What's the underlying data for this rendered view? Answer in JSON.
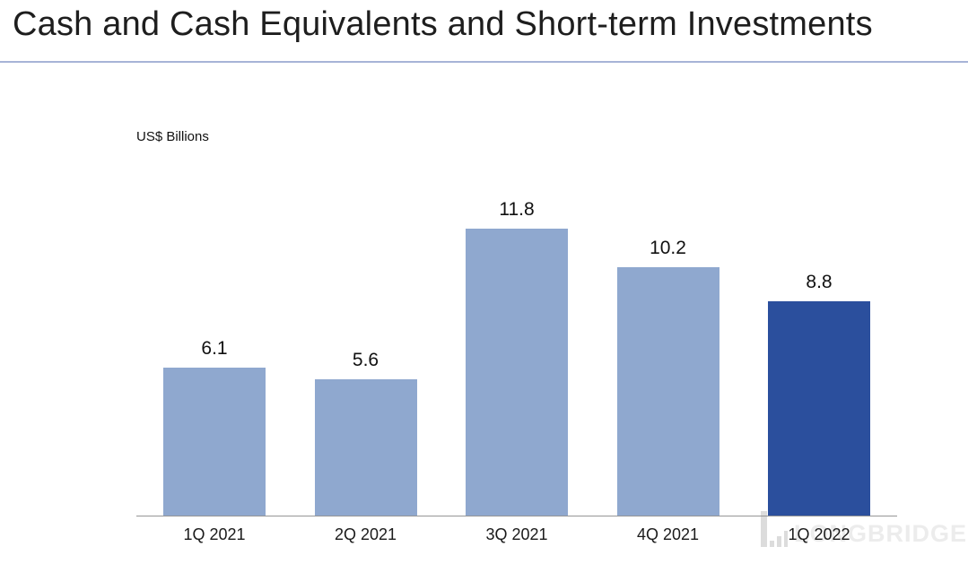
{
  "page": {
    "title": "Cash and Cash Equivalents and Short-term Investments",
    "units_label": "US$ Billions",
    "watermark_text": "LONGBRIDGE"
  },
  "chart_data": {
    "type": "bar",
    "title": "Cash and Cash Equivalents and Short-term Investments",
    "categories": [
      "1Q 2021",
      "2Q 2021",
      "3Q 2021",
      "4Q 2021",
      "1Q 2022"
    ],
    "values": [
      6.1,
      5.6,
      11.8,
      10.2,
      8.8
    ],
    "value_labels": [
      "6.1",
      "5.6",
      "11.8",
      "10.2",
      "8.8"
    ],
    "xlabel": "",
    "ylabel": "US$ Billions",
    "ylim": [
      0,
      12.5
    ],
    "grid": false,
    "legend": false,
    "highlight_index": 4,
    "colors": {
      "bar_default": "#8FA8CF",
      "bar_highlight": "#2B4F9D",
      "axis_line": "#969696",
      "title_rule": "#A7B4D7",
      "watermark": "#ECECEC",
      "watermark_icon": "#DCDCDC",
      "text": "#111111"
    }
  }
}
